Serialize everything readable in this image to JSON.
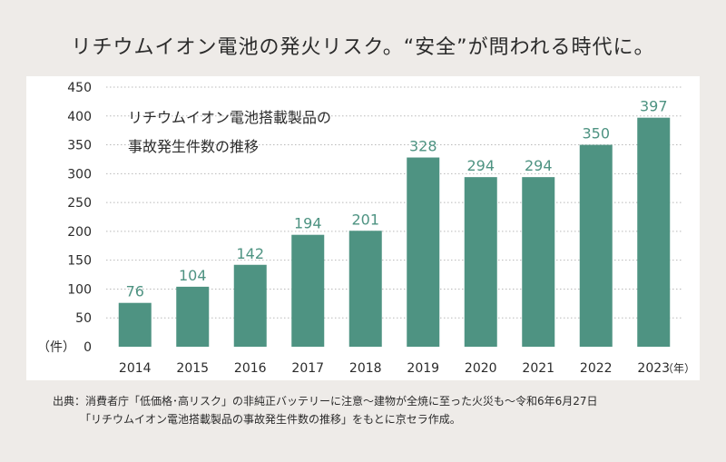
{
  "headline": "リチウムイオン電池の発火リスク。“安全”が問われる時代に。",
  "chart_data": {
    "type": "bar",
    "title": "リチウムイオン電池搭載製品の事故発生件数の推移",
    "title_lines": [
      "リチウムイオン電池搭載製品の",
      "事故発生件数の推移"
    ],
    "categories": [
      "2014",
      "2015",
      "2016",
      "2017",
      "2018",
      "2019",
      "2020",
      "2021",
      "2022",
      "2023"
    ],
    "values": [
      76,
      104,
      142,
      194,
      201,
      328,
      294,
      294,
      350,
      397
    ],
    "ylim": [
      0,
      450
    ],
    "yticks": [
      0,
      50,
      100,
      150,
      200,
      250,
      300,
      350,
      400,
      450
    ],
    "ylabel": "（件）",
    "xlabel": "（年）",
    "grid": true,
    "bar_color": "#4e9382",
    "label_color": "#4e9382"
  },
  "source": {
    "line1": "出典：消費者庁「低価格･高リスク」の非純正バッテリーに注意～建物が全焼に至った火災も～令和6年6月27日",
    "line2": "「リチウムイオン電池搭載製品の事故発生件数の推移」をもとに京セラ作成。"
  }
}
